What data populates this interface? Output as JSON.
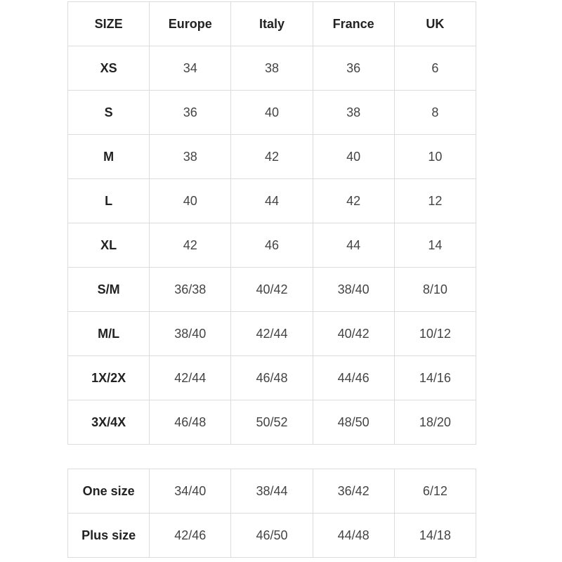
{
  "size_table": {
    "header": [
      "SIZE",
      "Europe",
      "Italy",
      "France",
      "UK"
    ],
    "rows": [
      [
        "XS",
        "34",
        "38",
        "36",
        "6"
      ],
      [
        "S",
        "36",
        "40",
        "38",
        "8"
      ],
      [
        "M",
        "38",
        "42",
        "40",
        "10"
      ],
      [
        "L",
        "40",
        "44",
        "42",
        "12"
      ],
      [
        "XL",
        "42",
        "46",
        "44",
        "14"
      ],
      [
        "S/M",
        "36/38",
        "40/42",
        "38/40",
        "8/10"
      ],
      [
        "M/L",
        "38/40",
        "42/44",
        "40/42",
        "10/12"
      ],
      [
        "1X/2X",
        "42/44",
        "46/48",
        "44/46",
        "14/16"
      ],
      [
        "3X/4X",
        "46/48",
        "50/52",
        "48/50",
        "18/20"
      ]
    ]
  },
  "special_sizes": {
    "rows": [
      [
        "One size",
        "34/40",
        "38/44",
        "36/42",
        "6/12"
      ],
      [
        "Plus size",
        "42/46",
        "46/50",
        "44/48",
        "14/18"
      ]
    ]
  }
}
